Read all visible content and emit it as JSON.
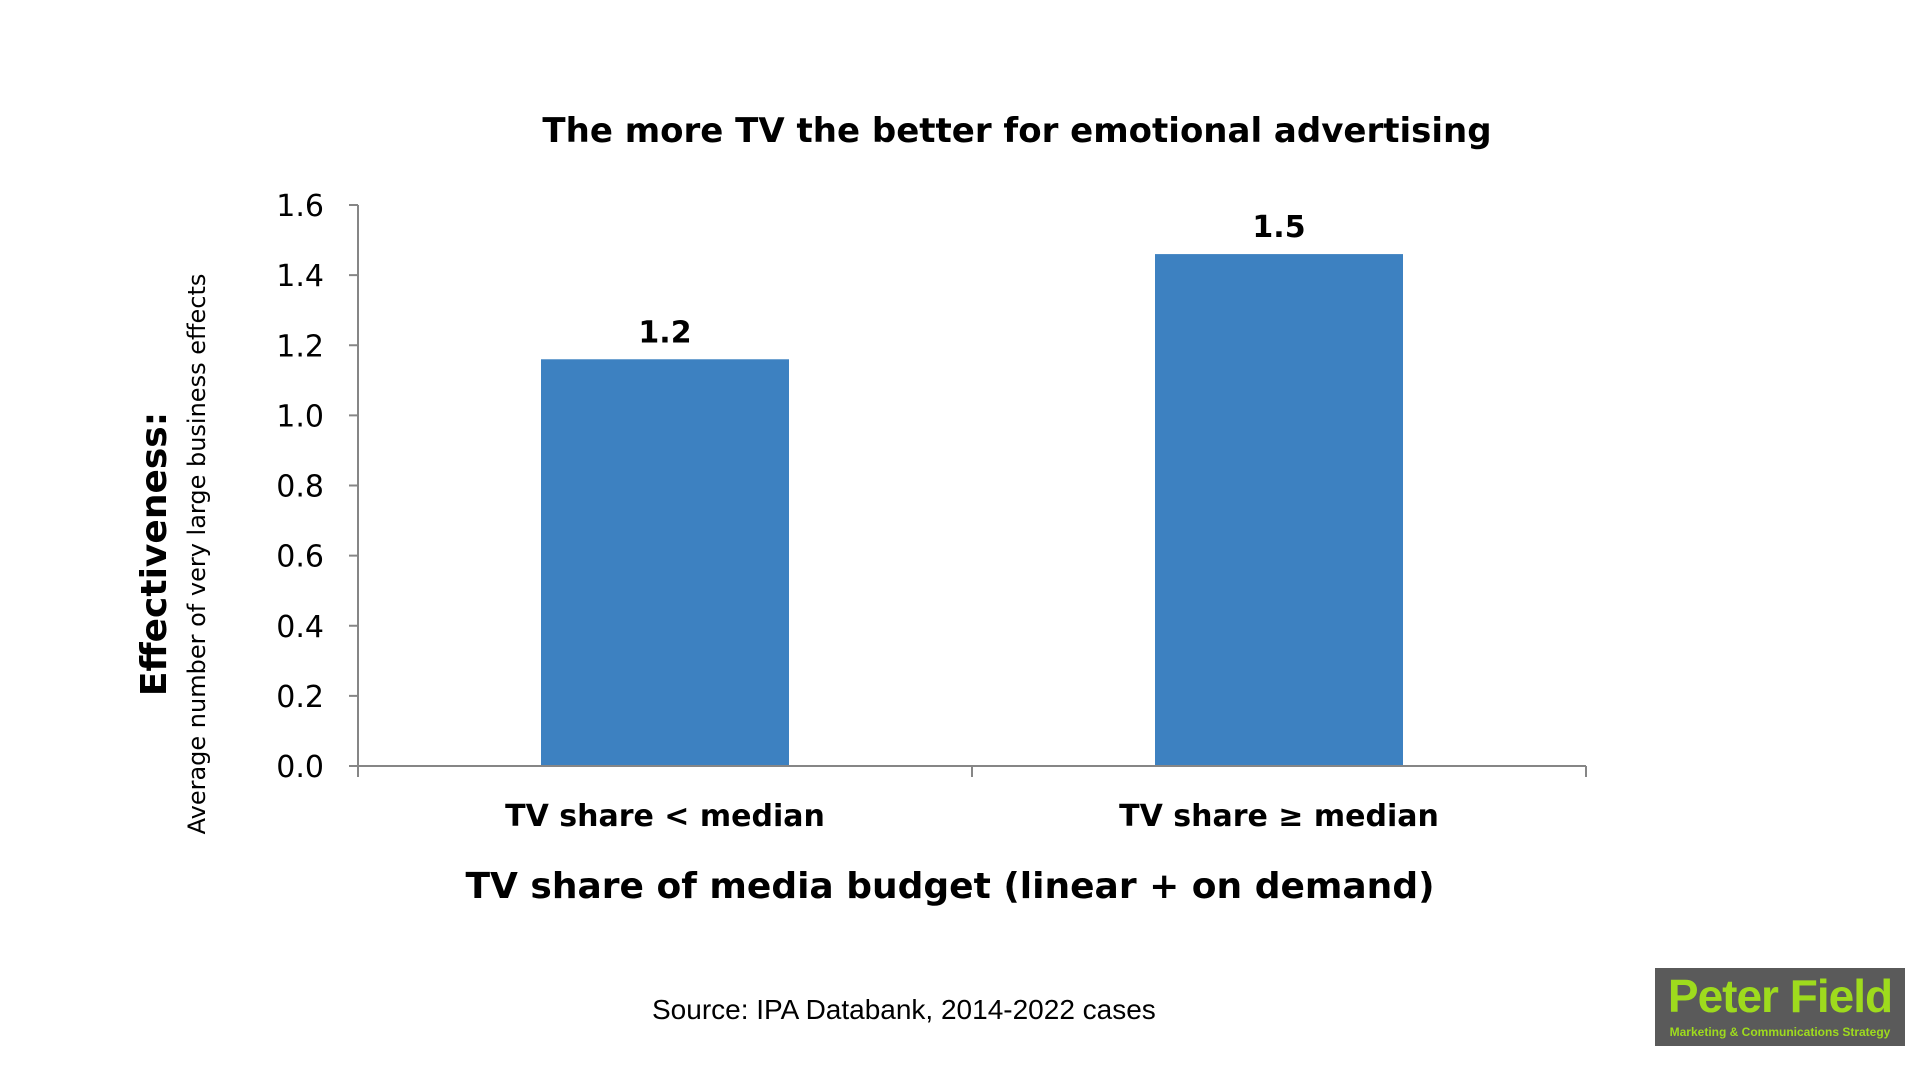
{
  "chart_data": {
    "type": "bar",
    "title": "The more TV the better for emotional advertising",
    "categories": [
      "TV share < median",
      "TV share ≥ median"
    ],
    "values": [
      1.16,
      1.46
    ],
    "data_labels": [
      "1.2",
      "1.5"
    ],
    "xlabel": "TV share of media budget (linear + on demand)",
    "ylabel": "Effectiveness:",
    "ylabel_sub": "Average number of very large business effects",
    "ylim": [
      0,
      1.6
    ],
    "yticks": [
      "0.0",
      "0.2",
      "0.4",
      "0.6",
      "0.8",
      "1.0",
      "1.2",
      "1.4",
      "1.6"
    ],
    "bar_color": "#3d81c1",
    "grid": false,
    "legend": "none"
  },
  "source": "Source: IPA Databank, 2014-2022 cases",
  "logo": {
    "name": "Peter Field",
    "tagline": "Marketing & Communications Strategy",
    "bg_color": "#5a5a5a",
    "text_color": "#9edb1d"
  }
}
